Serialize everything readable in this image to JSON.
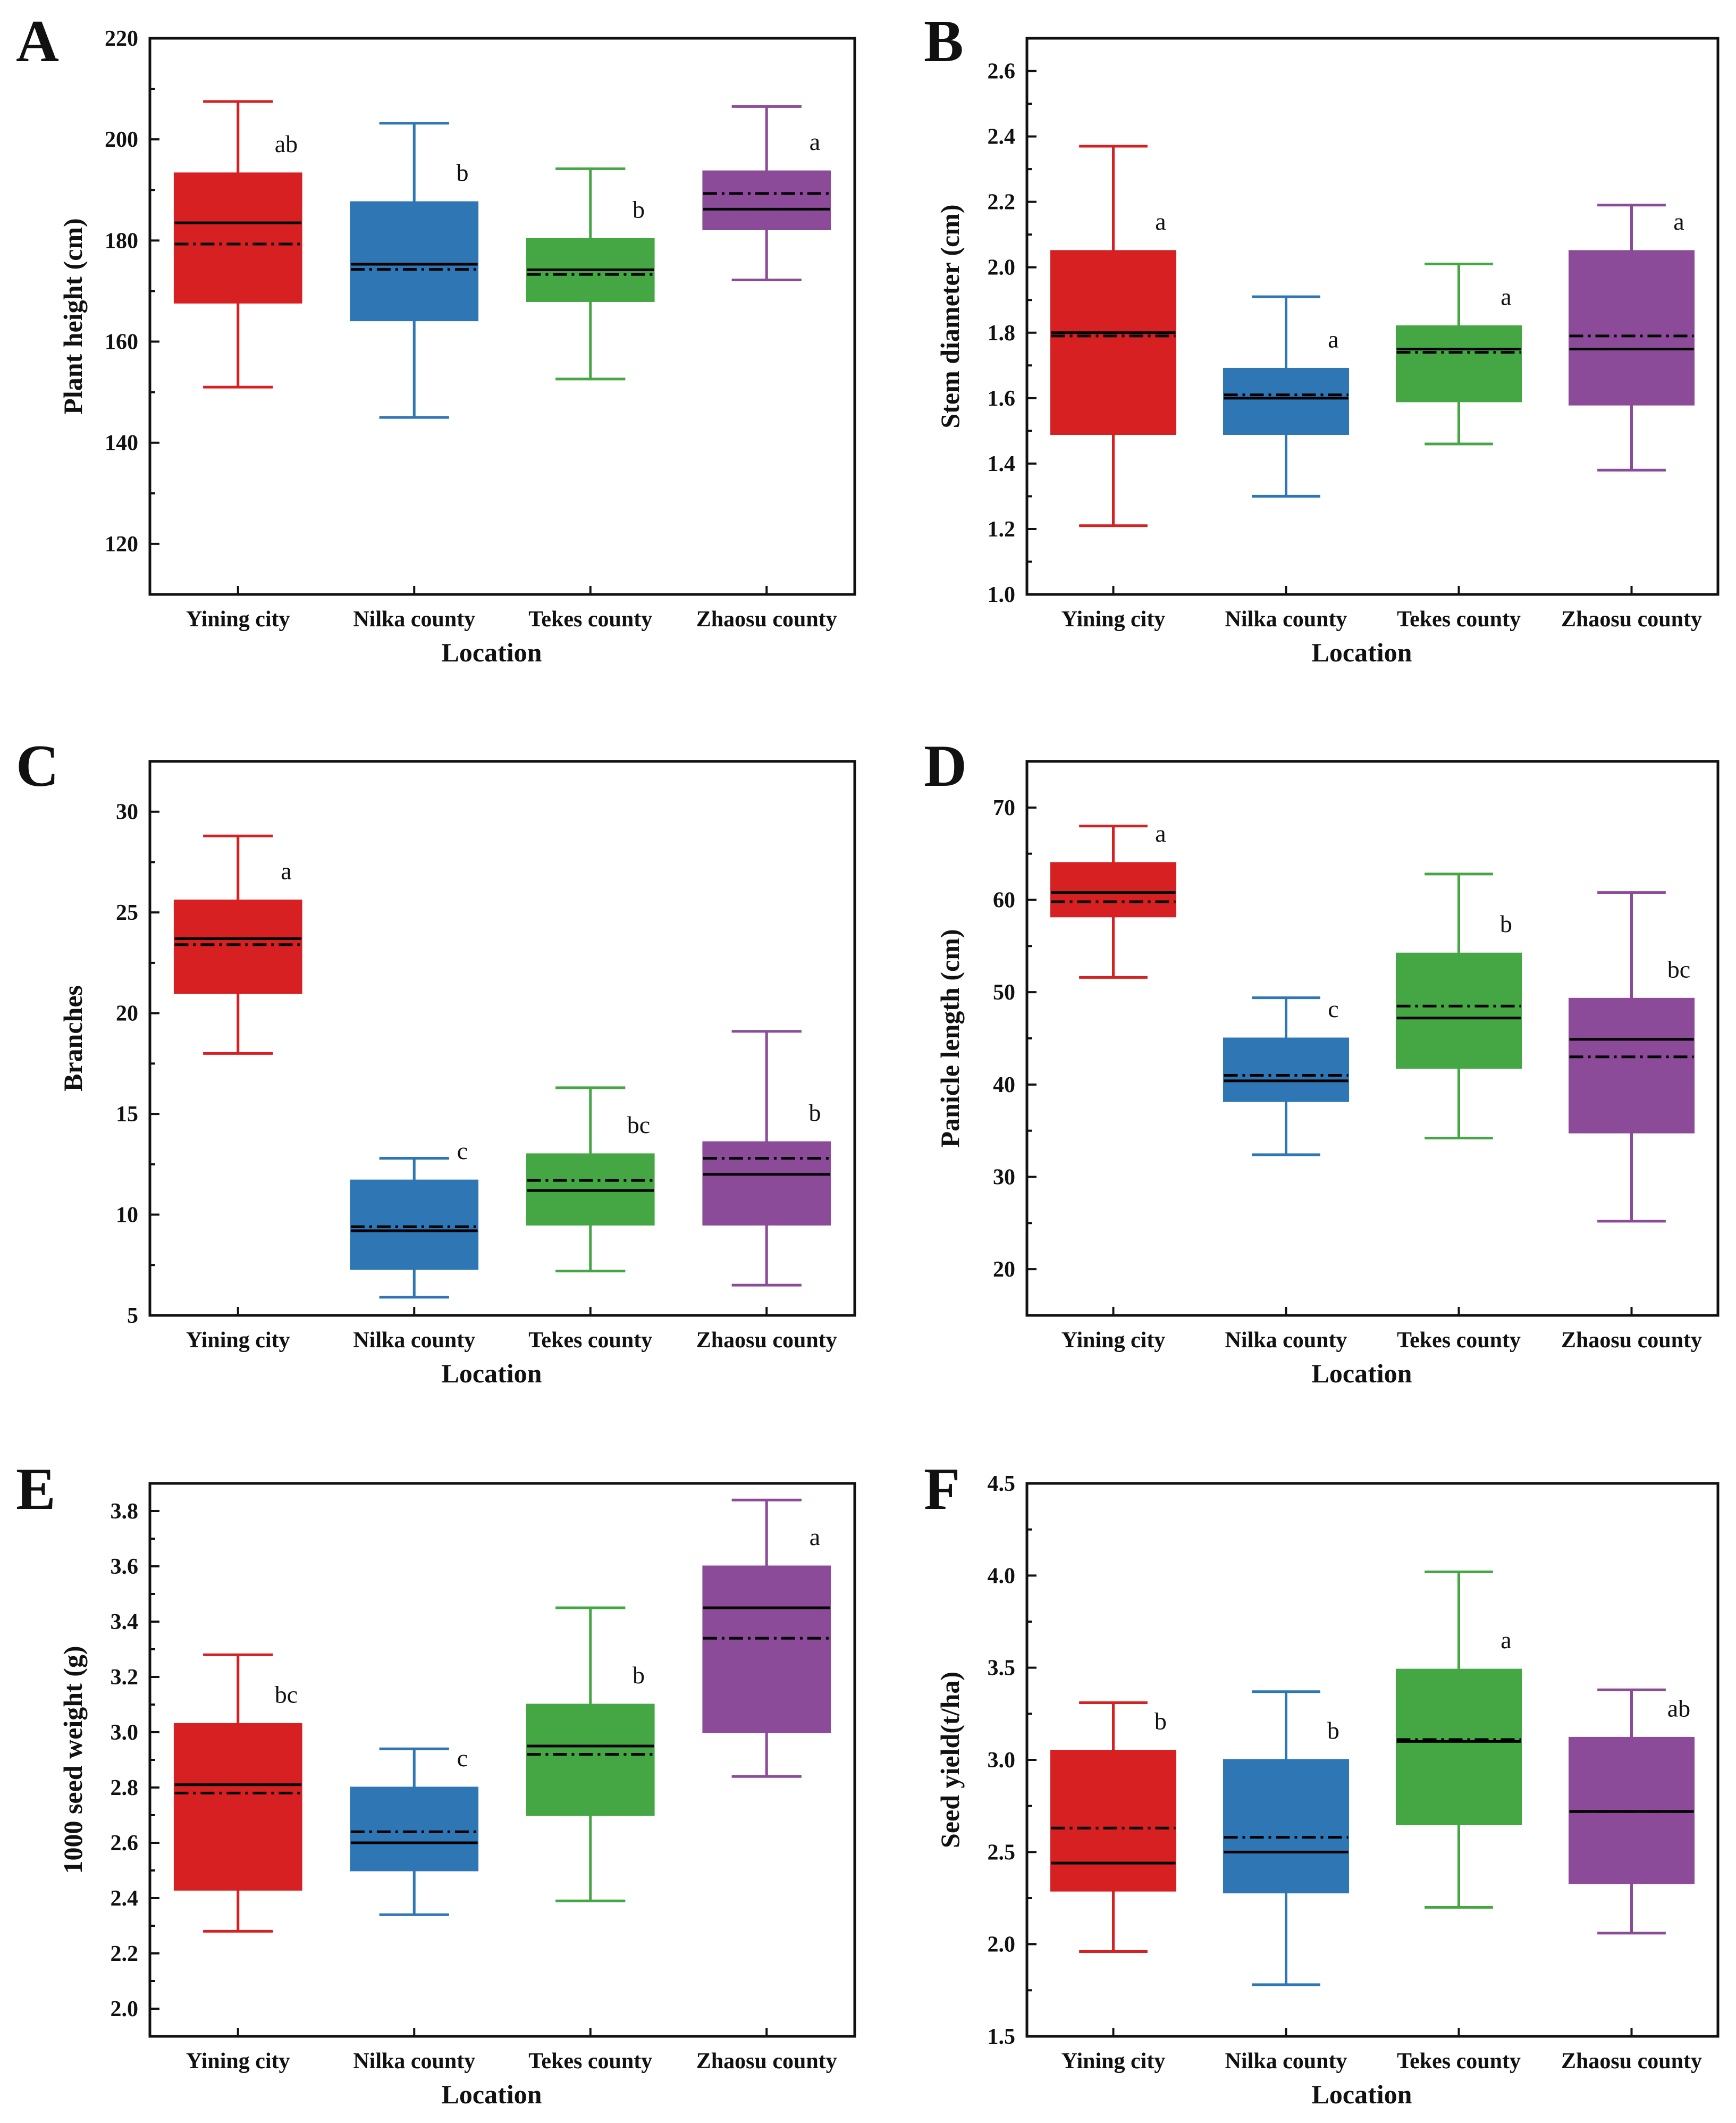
{
  "colors": {
    "Yining city": "#d62021",
    "Nilka county": "#2f77b4",
    "Tekes county": "#44a744",
    "Zhaosu county": "#8b4b98"
  },
  "legend_note": {
    "median_line": "solid",
    "mean_line": "dash-dot"
  },
  "chart_data": [
    {
      "type": "box",
      "panel": "A",
      "xlabel": "Location",
      "ylabel": "Plant height (cm)",
      "ylim": [
        110,
        220
      ],
      "yticks": [
        120,
        140,
        160,
        180,
        200,
        220
      ],
      "categories": [
        "Yining city",
        "Nilka county",
        "Tekes county",
        "Zhaosu county"
      ],
      "boxes": [
        {
          "min": 151,
          "q1": 167.7,
          "median": 183.5,
          "mean": 179.3,
          "q3": 193.3,
          "max": 207.5,
          "sig": "ab"
        },
        {
          "min": 145,
          "q1": 164.2,
          "median": 175.3,
          "mean": 174.3,
          "q3": 187.6,
          "max": 203.2,
          "sig": "b"
        },
        {
          "min": 152.6,
          "q1": 168,
          "median": 174.2,
          "mean": 173.3,
          "q3": 180.3,
          "max": 194.2,
          "sig": "b"
        },
        {
          "min": 172.2,
          "q1": 182.2,
          "median": 186.2,
          "mean": 189.3,
          "q3": 193.7,
          "max": 206.5,
          "sig": "a"
        }
      ]
    },
    {
      "type": "box",
      "panel": "B",
      "xlabel": "Location",
      "ylabel": "Stem diameter (cm)",
      "ylim": [
        1.0,
        2.7
      ],
      "yticks": [
        "1.0",
        "1.2",
        "1.4",
        "1.6",
        "1.8",
        "2.0",
        "2.2",
        "2.4",
        "2.6"
      ],
      "categories": [
        "Yining city",
        "Nilka county",
        "Tekes county",
        "Zhaosu county"
      ],
      "boxes": [
        {
          "min": 1.21,
          "q1": 1.49,
          "median": 1.8,
          "mean": 1.79,
          "q3": 2.05,
          "max": 2.37,
          "sig": "a"
        },
        {
          "min": 1.3,
          "q1": 1.49,
          "median": 1.6,
          "mean": 1.61,
          "q3": 1.69,
          "max": 1.91,
          "sig": "a"
        },
        {
          "min": 1.46,
          "q1": 1.59,
          "median": 1.75,
          "mean": 1.74,
          "q3": 1.82,
          "max": 2.01,
          "sig": "a"
        },
        {
          "min": 1.38,
          "q1": 1.58,
          "median": 1.75,
          "mean": 1.79,
          "q3": 2.05,
          "max": 2.19,
          "sig": "a"
        }
      ]
    },
    {
      "type": "box",
      "panel": "C",
      "xlabel": "Location",
      "ylabel": "Branches",
      "ylim": [
        5,
        32.5
      ],
      "yticks": [
        5,
        10,
        15,
        20,
        25,
        30
      ],
      "categories": [
        "Yining city",
        "Nilka county",
        "Tekes county",
        "Zhaosu county"
      ],
      "boxes": [
        {
          "min": 18,
          "q1": 21,
          "median": 23.7,
          "mean": 23.4,
          "q3": 25.6,
          "max": 28.8,
          "sig": "a"
        },
        {
          "min": 5.9,
          "q1": 7.3,
          "median": 9.2,
          "mean": 9.4,
          "q3": 11.7,
          "max": 12.8,
          "sig": "c"
        },
        {
          "min": 7.2,
          "q1": 9.5,
          "median": 11.2,
          "mean": 11.7,
          "q3": 13,
          "max": 16.3,
          "sig": "bc"
        },
        {
          "min": 6.5,
          "q1": 9.5,
          "median": 12,
          "mean": 12.8,
          "q3": 13.6,
          "max": 19.1,
          "sig": "b"
        }
      ]
    },
    {
      "type": "box",
      "panel": "D",
      "xlabel": "Location",
      "ylabel": "Panicle length (cm)",
      "ylim": [
        15,
        75
      ],
      "yticks": [
        20,
        30,
        40,
        50,
        60,
        70
      ],
      "categories": [
        "Yining city",
        "Nilka county",
        "Tekes county",
        "Zhaosu county"
      ],
      "boxes": [
        {
          "min": 51.6,
          "q1": 58.2,
          "median": 60.8,
          "mean": 59.8,
          "q3": 64,
          "max": 68,
          "sig": "a"
        },
        {
          "min": 32.4,
          "q1": 38.2,
          "median": 40.4,
          "mean": 41,
          "q3": 45,
          "max": 49.4,
          "sig": "c"
        },
        {
          "min": 34.2,
          "q1": 41.8,
          "median": 47.2,
          "mean": 48.5,
          "q3": 54.2,
          "max": 62.8,
          "sig": "b"
        },
        {
          "min": 25.2,
          "q1": 34.8,
          "median": 44.9,
          "mean": 43,
          "q3": 49.3,
          "max": 60.8,
          "sig": "bc"
        }
      ]
    },
    {
      "type": "box",
      "panel": "E",
      "xlabel": "Location",
      "ylabel": "1000 seed weight (g)",
      "ylim": [
        1.9,
        3.9
      ],
      "yticks": [
        "2.0",
        "2.2",
        "2.4",
        "2.6",
        "2.8",
        "3.0",
        "3.2",
        "3.4",
        "3.6",
        "3.8"
      ],
      "categories": [
        "Yining city",
        "Nilka county",
        "Tekes county",
        "Zhaosu county"
      ],
      "boxes": [
        {
          "min": 2.28,
          "q1": 2.43,
          "median": 2.81,
          "mean": 2.78,
          "q3": 3.03,
          "max": 3.28,
          "sig": "bc"
        },
        {
          "min": 2.34,
          "q1": 2.5,
          "median": 2.6,
          "mean": 2.64,
          "q3": 2.8,
          "max": 2.94,
          "sig": "c"
        },
        {
          "min": 2.39,
          "q1": 2.7,
          "median": 2.95,
          "mean": 2.92,
          "q3": 3.1,
          "max": 3.45,
          "sig": "b"
        },
        {
          "min": 2.84,
          "q1": 3.0,
          "median": 3.45,
          "mean": 3.34,
          "q3": 3.6,
          "max": 3.84,
          "sig": "a"
        }
      ]
    },
    {
      "type": "box",
      "panel": "F",
      "xlabel": "Location",
      "ylabel": "Seed yield(t/ha)",
      "ylim": [
        1.5,
        4.5
      ],
      "yticks": [
        "1.5",
        "2.0",
        "2.5",
        "3.0",
        "3.5",
        "4.0",
        "4.5"
      ],
      "categories": [
        "Yining city",
        "Nilka county",
        "Tekes county",
        "Zhaosu county"
      ],
      "boxes": [
        {
          "min": 1.96,
          "q1": 2.29,
          "median": 2.44,
          "mean": 2.63,
          "q3": 3.05,
          "max": 3.31,
          "sig": "b"
        },
        {
          "min": 1.78,
          "q1": 2.28,
          "median": 2.5,
          "mean": 2.58,
          "q3": 3.0,
          "max": 3.37,
          "sig": "b"
        },
        {
          "min": 2.2,
          "q1": 2.65,
          "median": 3.1,
          "mean": 3.11,
          "q3": 3.49,
          "max": 4.02,
          "sig": "a"
        },
        {
          "min": 2.06,
          "q1": 2.33,
          "median": 2.72,
          "mean": 2.72,
          "q3": 3.12,
          "max": 3.38,
          "sig": "ab"
        }
      ]
    }
  ]
}
